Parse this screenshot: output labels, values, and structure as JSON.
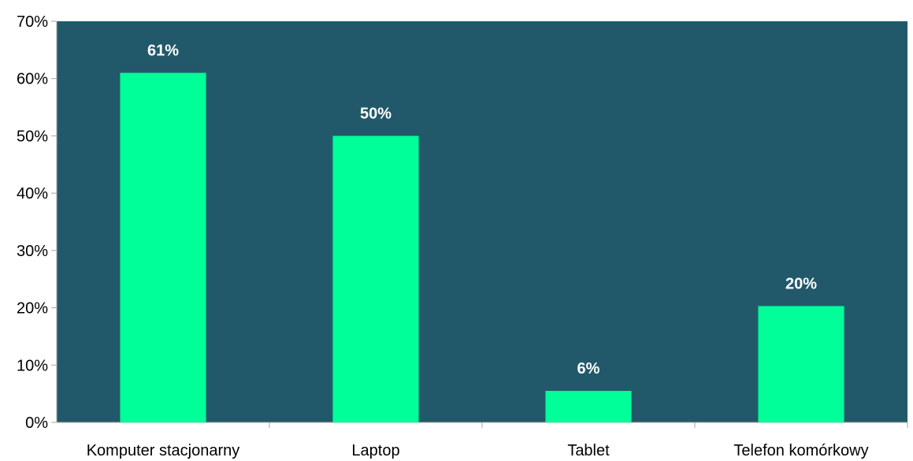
{
  "chart_data": {
    "type": "bar",
    "categories": [
      "Komputer stacjonarny",
      "Laptop",
      "Tablet",
      "Telefon komórkowy"
    ],
    "values": [
      61,
      50,
      5.5,
      20.3
    ],
    "data_labels": [
      "61%",
      "50%",
      "6%",
      "20%"
    ],
    "title": "",
    "xlabel": "",
    "ylabel": "",
    "ylim": [
      0,
      70
    ],
    "y_ticks": [
      0,
      10,
      20,
      30,
      40,
      50,
      60,
      70
    ],
    "y_tick_labels": [
      "0%",
      "10%",
      "20%",
      "30%",
      "40%",
      "50%",
      "60%",
      "70%"
    ],
    "grid": false,
    "legend": "none"
  },
  "colors": {
    "plot_background": "#22596a",
    "bar": "#00ff99",
    "data_label": "#ffffff",
    "axis": "#a6a6a6",
    "text": "#000000"
  }
}
